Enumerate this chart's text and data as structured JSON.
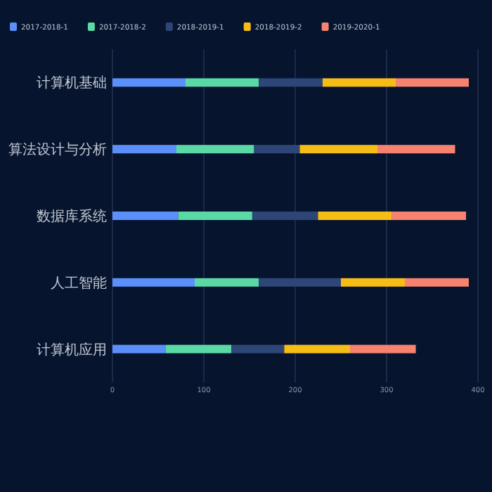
{
  "chart_data": {
    "type": "bar",
    "orientation": "horizontal",
    "stacked": true,
    "categories": [
      "计算机基础",
      "算法设计与分析",
      "数据库系统",
      "人工智能",
      "计算机应用"
    ],
    "series": [
      {
        "name": "2017-2018-1",
        "color": "#5b8ff9",
        "values": [
          80,
          70,
          72,
          90,
          58
        ]
      },
      {
        "name": "2017-2018-2",
        "color": "#5ad8a6",
        "values": [
          80,
          85,
          81,
          70,
          72
        ]
      },
      {
        "name": "2018-2019-1",
        "color": "#2e4677",
        "values": [
          70,
          50,
          72,
          90,
          58
        ]
      },
      {
        "name": "2018-2019-2",
        "color": "#f6bd16",
        "values": [
          80,
          85,
          81,
          70,
          72
        ]
      },
      {
        "name": "2019-2020-1",
        "color": "#f6826f",
        "values": [
          80,
          85,
          81,
          70,
          72
        ]
      }
    ],
    "xlim": [
      0,
      400
    ],
    "xticks": [
      0,
      100,
      200,
      300,
      400
    ],
    "grid": "x",
    "legend": "top left"
  }
}
